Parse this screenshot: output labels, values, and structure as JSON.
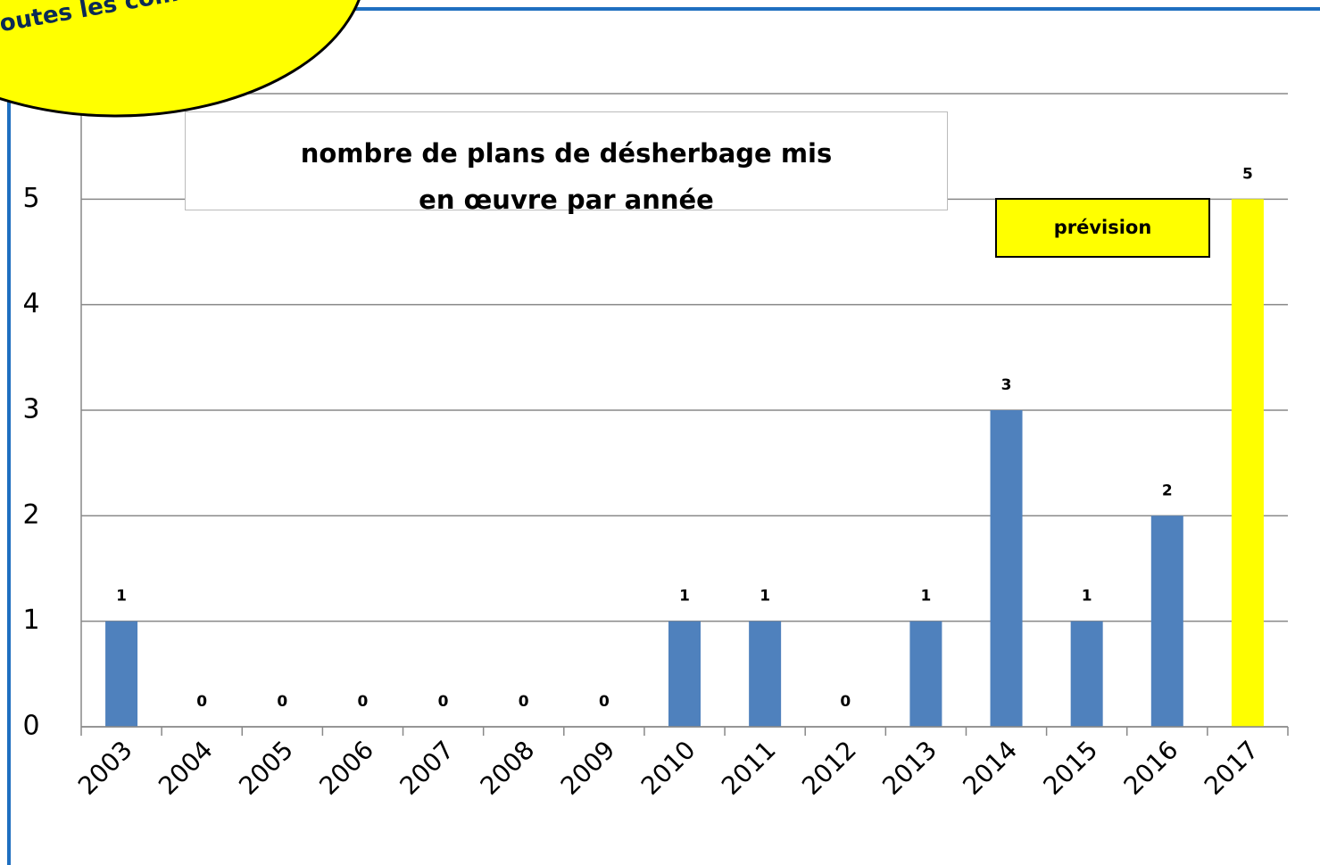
{
  "chart_data": {
    "type": "bar",
    "title": "nombre de plans de désherbage mis en œuvre par année",
    "annotations": [
      "outes les comm",
      "prévision"
    ],
    "categories": [
      "2003",
      "2004",
      "2005",
      "2006",
      "2007",
      "2008",
      "2009",
      "2010",
      "2011",
      "2012",
      "2013",
      "2014",
      "2015",
      "2016",
      "2017"
    ],
    "values": [
      1,
      0,
      0,
      0,
      0,
      0,
      0,
      1,
      1,
      0,
      1,
      3,
      1,
      2,
      5
    ],
    "colors": [
      "#4f81bd",
      "#4f81bd",
      "#4f81bd",
      "#4f81bd",
      "#4f81bd",
      "#4f81bd",
      "#4f81bd",
      "#4f81bd",
      "#4f81bd",
      "#4f81bd",
      "#4f81bd",
      "#4f81bd",
      "#4f81bd",
      "#4f81bd",
      "#ffff00"
    ],
    "ylim": [
      0,
      6
    ],
    "yticks": [
      0,
      1,
      2,
      3,
      4,
      5
    ],
    "grid": true
  }
}
